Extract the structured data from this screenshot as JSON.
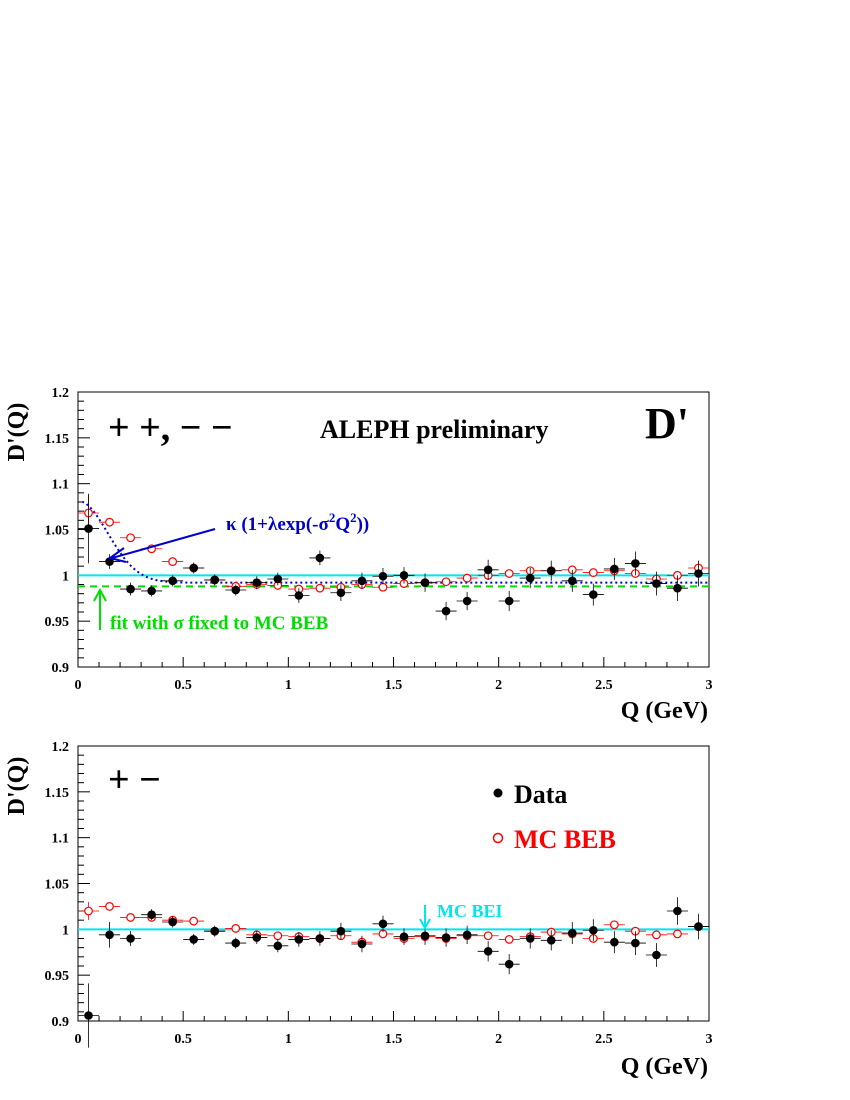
{
  "chart_data": [
    {
      "type": "scatter",
      "panel": "top",
      "xlabel": "Q (GeV)",
      "ylabel": "D'(Q)",
      "xlim": [
        0,
        3
      ],
      "ylim": [
        0.9,
        1.2
      ],
      "xticks": [
        "0",
        "0.5",
        "1",
        "1.5",
        "2",
        "2.5",
        "3"
      ],
      "yticks": [
        "0.9",
        "0.95",
        "1",
        "1.05",
        "1.1",
        "1.15",
        "1.2"
      ],
      "charge_label": "+ +, − −",
      "corner_label": "D'",
      "annotations": {
        "preliminary": "ALEPH preliminary",
        "fit_formula": {
          "kappa": "κ",
          "lambda": "λ",
          "sigma": "σ",
          "p1": " (1+",
          "p2": "exp(-",
          "p3": "Q",
          "p4": "))",
          "sup": "2"
        },
        "fit_note": "fit with σ fixed to MC BEB"
      },
      "colors": {
        "data": "#000000",
        "mc": "#ff0000",
        "unity": "#00e5ee",
        "fit": "#0000cc",
        "fixed_fit": "#00dd00"
      },
      "series": [
        {
          "name": "Data",
          "style": "filled",
          "x": [
            0.05,
            0.15,
            0.25,
            0.35,
            0.45,
            0.55,
            0.65,
            0.75,
            0.85,
            0.95,
            1.05,
            1.15,
            1.25,
            1.35,
            1.45,
            1.55,
            1.65,
            1.75,
            1.85,
            1.95,
            2.05,
            2.15,
            2.25,
            2.35,
            2.45,
            2.55,
            2.65,
            2.75,
            2.85,
            2.95
          ],
          "y": [
            1.051,
            1.015,
            0.985,
            0.983,
            0.994,
            1.008,
            0.995,
            0.984,
            0.992,
            0.996,
            0.978,
            1.019,
            0.981,
            0.994,
            0.999,
            1.0,
            0.992,
            0.961,
            0.972,
            1.006,
            0.972,
            0.997,
            1.005,
            0.994,
            0.979,
            1.007,
            1.013,
            0.991,
            0.986,
            1.002
          ],
          "err": [
            0.038,
            0.008,
            0.007,
            0.006,
            0.006,
            0.006,
            0.006,
            0.006,
            0.007,
            0.007,
            0.008,
            0.008,
            0.009,
            0.009,
            0.009,
            0.009,
            0.01,
            0.01,
            0.01,
            0.011,
            0.011,
            0.011,
            0.011,
            0.012,
            0.012,
            0.012,
            0.013,
            0.013,
            0.014,
            0.014
          ]
        },
        {
          "name": "MC BEB",
          "style": "open",
          "x": [
            0.05,
            0.15,
            0.25,
            0.35,
            0.45,
            0.55,
            0.65,
            0.75,
            0.85,
            0.95,
            1.05,
            1.15,
            1.25,
            1.35,
            1.45,
            1.55,
            1.65,
            1.75,
            1.85,
            1.95,
            2.05,
            2.15,
            2.25,
            2.35,
            2.45,
            2.55,
            2.65,
            2.75,
            2.85,
            2.95
          ],
          "y": [
            1.068,
            1.058,
            1.041,
            1.029,
            1.015,
            1.008,
            0.995,
            0.988,
            0.99,
            0.989,
            0.985,
            0.986,
            0.987,
            0.99,
            0.987,
            0.991,
            0.992,
            0.993,
            0.997,
            1.0,
            1.002,
            1.005,
            1.005,
            1.006,
            1.003,
            1.005,
            1.002,
            0.996,
            1.0,
            1.008
          ],
          "err": [
            0.02,
            0.004,
            0.003,
            0.003,
            0.003,
            0.003,
            0.003,
            0.003,
            0.003,
            0.003,
            0.003,
            0.003,
            0.003,
            0.003,
            0.003,
            0.003,
            0.003,
            0.003,
            0.003,
            0.003,
            0.003,
            0.003,
            0.003,
            0.003,
            0.003,
            0.003,
            0.003,
            0.003,
            0.003,
            0.003
          ]
        }
      ],
      "fit_params": {
        "kappa": 0.992,
        "lambda": 0.09,
        "sigma": 5.0
      },
      "fixed_fit_y": 0.988,
      "unity_y": 1.0
    },
    {
      "type": "scatter",
      "panel": "bottom",
      "xlabel": "Q (GeV)",
      "ylabel": "D'(Q)",
      "xlim": [
        0,
        3
      ],
      "ylim": [
        0.9,
        1.2
      ],
      "xticks": [
        "0",
        "0.5",
        "1",
        "1.5",
        "2",
        "2.5",
        "3"
      ],
      "yticks": [
        "0.9",
        "0.95",
        "1",
        "1.05",
        "1.1",
        "1.15",
        "1.2"
      ],
      "charge_label": "+ −",
      "legend": {
        "data": "Data",
        "mc": "MC BEB"
      },
      "annotations": {
        "mc_bei": "MC BEI",
        "mc_bei_x": 1.65
      },
      "colors": {
        "data": "#000000",
        "mc": "#ff0000",
        "unity": "#00e5ee"
      },
      "series": [
        {
          "name": "Data",
          "style": "filled",
          "x": [
            0.05,
            0.15,
            0.25,
            0.35,
            0.45,
            0.55,
            0.65,
            0.75,
            0.85,
            0.95,
            1.05,
            1.15,
            1.25,
            1.35,
            1.45,
            1.55,
            1.65,
            1.75,
            1.85,
            1.95,
            2.05,
            2.15,
            2.25,
            2.35,
            2.45,
            2.55,
            2.65,
            2.75,
            2.85,
            2.95
          ],
          "y": [
            0.906,
            0.994,
            0.99,
            1.016,
            1.008,
            0.989,
            0.998,
            0.985,
            0.991,
            0.982,
            0.989,
            0.99,
            0.998,
            0.984,
            1.006,
            0.992,
            0.993,
            0.991,
            0.994,
            0.976,
            0.962,
            0.99,
            0.988,
            0.996,
            0.999,
            0.986,
            0.985,
            0.972,
            1.02,
            1.003
          ],
          "err": [
            0.035,
            0.014,
            0.008,
            0.006,
            0.006,
            0.006,
            0.006,
            0.006,
            0.007,
            0.007,
            0.008,
            0.008,
            0.009,
            0.009,
            0.009,
            0.009,
            0.01,
            0.01,
            0.01,
            0.011,
            0.011,
            0.011,
            0.011,
            0.012,
            0.012,
            0.012,
            0.013,
            0.013,
            0.015,
            0.014
          ]
        },
        {
          "name": "MC BEB",
          "style": "open",
          "x": [
            0.05,
            0.15,
            0.25,
            0.35,
            0.45,
            0.55,
            0.65,
            0.75,
            0.85,
            0.95,
            1.05,
            1.15,
            1.25,
            1.35,
            1.45,
            1.55,
            1.65,
            1.75,
            1.85,
            1.95,
            2.05,
            2.15,
            2.25,
            2.35,
            2.45,
            2.55,
            2.65,
            2.75,
            2.85,
            2.95
          ],
          "y": [
            1.02,
            1.025,
            1.013,
            1.013,
            1.01,
            1.009,
            0.998,
            1.001,
            0.994,
            0.993,
            0.992,
            0.99,
            0.993,
            0.986,
            0.995,
            0.99,
            0.992,
            0.99,
            0.993,
            0.993,
            0.989,
            0.992,
            0.997,
            0.995,
            0.99,
            1.005,
            0.998,
            0.994,
            0.995,
            1.003
          ],
          "err": [
            0.01,
            0.004,
            0.003,
            0.003,
            0.003,
            0.003,
            0.003,
            0.003,
            0.003,
            0.003,
            0.003,
            0.003,
            0.003,
            0.003,
            0.003,
            0.003,
            0.003,
            0.003,
            0.003,
            0.003,
            0.003,
            0.003,
            0.003,
            0.003,
            0.003,
            0.003,
            0.003,
            0.003,
            0.003,
            0.003
          ]
        }
      ],
      "unity_y": 1.0
    }
  ]
}
